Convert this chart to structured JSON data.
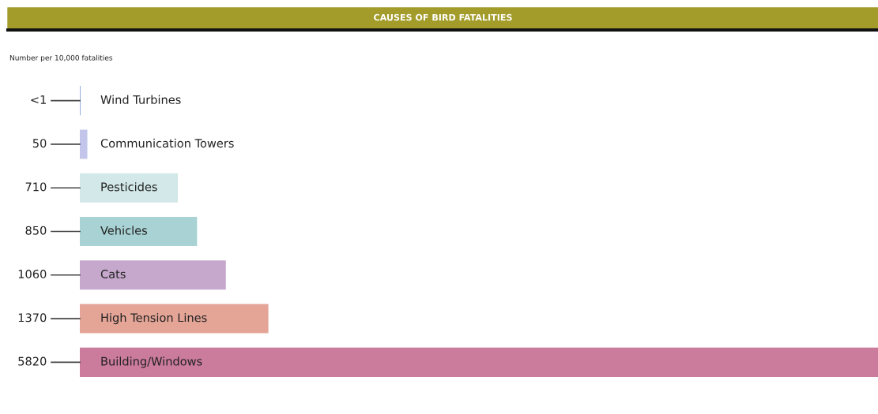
{
  "chart_data": {
    "type": "bar",
    "orientation": "horizontal",
    "title": "CAUSES OF BIRD FATALITIES",
    "subtitle": "Number per 10,000 fatalities",
    "categories": [
      "Wind Turbines",
      "Communication Towers",
      "Pesticides",
      "Vehicles",
      "Cats",
      "High Tension Lines",
      "Building/Windows"
    ],
    "values": [
      0.5,
      50,
      710,
      850,
      1060,
      1370,
      5820
    ],
    "value_labels": [
      "<1",
      "50",
      "710",
      "850",
      "1060",
      "1370",
      "5820"
    ],
    "colors": [
      "#8fa6dc",
      "#c3c6ea",
      "#d3e8e8",
      "#a8d2d3",
      "#c6a8cd",
      "#e4a597",
      "#cb7b9c"
    ],
    "xlim": [
      0,
      5820
    ]
  }
}
